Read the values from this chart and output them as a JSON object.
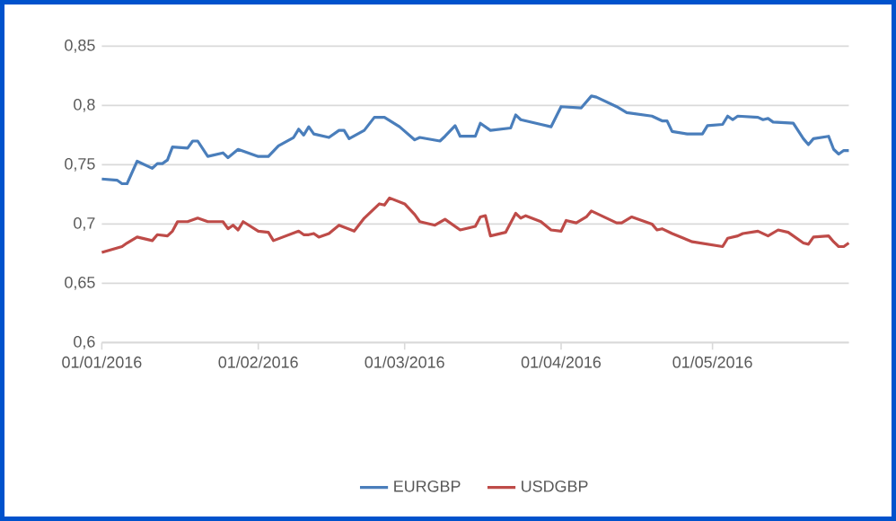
{
  "chart_data": {
    "type": "line",
    "xlim": [
      "2016-01-01",
      "2016-05-28"
    ],
    "ylim": [
      0.6,
      0.85
    ],
    "xticks": [
      {
        "value": "2016-01-01",
        "label": "01/01/2016"
      },
      {
        "value": "2016-02-01",
        "label": "01/02/2016"
      },
      {
        "value": "2016-03-01",
        "label": "01/03/2016"
      },
      {
        "value": "2016-04-01",
        "label": "01/04/2016"
      },
      {
        "value": "2016-05-01",
        "label": "01/05/2016"
      }
    ],
    "yticks": [
      {
        "value": 0.6,
        "label": "0,6"
      },
      {
        "value": 0.65,
        "label": "0,65"
      },
      {
        "value": 0.7,
        "label": "0,7"
      },
      {
        "value": 0.75,
        "label": "0,75"
      },
      {
        "value": 0.8,
        "label": "0,8"
      },
      {
        "value": 0.85,
        "label": "0,85"
      }
    ],
    "grid": "y",
    "legend": "bottom",
    "marker": "none",
    "line_style": "solid",
    "series": [
      {
        "name": "EURGBP",
        "color": "#4a7ebb",
        "x": [
          "2016-01-01",
          "2016-01-04",
          "2016-01-05",
          "2016-01-06",
          "2016-01-08",
          "2016-01-11",
          "2016-01-12",
          "2016-01-13",
          "2016-01-14",
          "2016-01-15",
          "2016-01-18",
          "2016-01-19",
          "2016-01-20",
          "2016-01-22",
          "2016-01-25",
          "2016-01-26",
          "2016-01-28",
          "2016-02-01",
          "2016-02-03",
          "2016-02-05",
          "2016-02-08",
          "2016-02-09",
          "2016-02-10",
          "2016-02-11",
          "2016-02-12",
          "2016-02-15",
          "2016-02-17",
          "2016-02-18",
          "2016-02-19",
          "2016-02-22",
          "2016-02-24",
          "2016-02-26",
          "2016-02-29",
          "2016-03-03",
          "2016-03-04",
          "2016-03-08",
          "2016-03-09",
          "2016-03-11",
          "2016-03-12",
          "2016-03-15",
          "2016-03-16",
          "2016-03-18",
          "2016-03-22",
          "2016-03-23",
          "2016-03-24",
          "2016-03-28",
          "2016-03-30",
          "2016-04-01",
          "2016-04-05",
          "2016-04-07",
          "2016-04-08",
          "2016-04-12",
          "2016-04-14",
          "2016-04-19",
          "2016-04-21",
          "2016-04-22",
          "2016-04-23",
          "2016-04-26",
          "2016-04-28",
          "2016-04-29",
          "2016-04-30",
          "2016-05-03",
          "2016-05-04",
          "2016-05-05",
          "2016-05-06",
          "2016-05-10",
          "2016-05-11",
          "2016-05-12",
          "2016-05-13",
          "2016-05-17",
          "2016-05-19",
          "2016-05-20",
          "2016-05-21",
          "2016-05-24",
          "2016-05-25",
          "2016-05-26",
          "2016-05-27",
          "2016-05-28"
        ],
        "values": [
          0.738,
          0.737,
          0.734,
          0.734,
          0.753,
          0.747,
          0.751,
          0.751,
          0.754,
          0.765,
          0.764,
          0.77,
          0.77,
          0.757,
          0.76,
          0.756,
          0.763,
          0.757,
          0.757,
          0.766,
          0.773,
          0.78,
          0.775,
          0.782,
          0.776,
          0.773,
          0.779,
          0.779,
          0.772,
          0.779,
          0.79,
          0.79,
          0.782,
          0.771,
          0.773,
          0.77,
          0.774,
          0.783,
          0.774,
          0.774,
          0.785,
          0.779,
          0.781,
          0.792,
          0.788,
          0.784,
          0.782,
          0.799,
          0.798,
          0.808,
          0.807,
          0.799,
          0.794,
          0.791,
          0.787,
          0.787,
          0.778,
          0.776,
          0.776,
          0.776,
          0.783,
          0.784,
          0.791,
          0.788,
          0.791,
          0.79,
          0.788,
          0.789,
          0.786,
          0.785,
          0.772,
          0.767,
          0.772,
          0.774,
          0.763,
          0.759,
          0.762,
          0.762
        ]
      },
      {
        "name": "USDGBP",
        "color": "#be4b48",
        "x": [
          "2016-01-01",
          "2016-01-05",
          "2016-01-06",
          "2016-01-08",
          "2016-01-11",
          "2016-01-12",
          "2016-01-14",
          "2016-01-15",
          "2016-01-16",
          "2016-01-18",
          "2016-01-20",
          "2016-01-22",
          "2016-01-25",
          "2016-01-26",
          "2016-01-27",
          "2016-01-28",
          "2016-01-29",
          "2016-02-01",
          "2016-02-03",
          "2016-02-04",
          "2016-02-09",
          "2016-02-10",
          "2016-02-11",
          "2016-02-12",
          "2016-02-13",
          "2016-02-15",
          "2016-02-17",
          "2016-02-20",
          "2016-02-22",
          "2016-02-25",
          "2016-02-26",
          "2016-02-27",
          "2016-03-01",
          "2016-03-03",
          "2016-03-04",
          "2016-03-07",
          "2016-03-09",
          "2016-03-12",
          "2016-03-15",
          "2016-03-16",
          "2016-03-17",
          "2016-03-18",
          "2016-03-21",
          "2016-03-23",
          "2016-03-24",
          "2016-03-25",
          "2016-03-28",
          "2016-03-30",
          "2016-04-01",
          "2016-04-02",
          "2016-04-04",
          "2016-04-06",
          "2016-04-07",
          "2016-04-12",
          "2016-04-13",
          "2016-04-15",
          "2016-04-19",
          "2016-04-20",
          "2016-04-21",
          "2016-04-23",
          "2016-04-27",
          "2016-05-03",
          "2016-05-04",
          "2016-05-06",
          "2016-05-07",
          "2016-05-10",
          "2016-05-12",
          "2016-05-14",
          "2016-05-16",
          "2016-05-19",
          "2016-05-20",
          "2016-05-21",
          "2016-05-24",
          "2016-05-25",
          "2016-05-26",
          "2016-05-27",
          "2016-05-28"
        ],
        "values": [
          0.676,
          0.681,
          0.684,
          0.689,
          0.686,
          0.691,
          0.69,
          0.694,
          0.702,
          0.702,
          0.705,
          0.702,
          0.702,
          0.696,
          0.699,
          0.695,
          0.702,
          0.694,
          0.693,
          0.686,
          0.694,
          0.691,
          0.691,
          0.692,
          0.689,
          0.692,
          0.699,
          0.694,
          0.705,
          0.717,
          0.716,
          0.722,
          0.717,
          0.708,
          0.702,
          0.699,
          0.704,
          0.695,
          0.698,
          0.706,
          0.707,
          0.69,
          0.693,
          0.709,
          0.705,
          0.707,
          0.702,
          0.695,
          0.694,
          0.703,
          0.701,
          0.706,
          0.711,
          0.701,
          0.701,
          0.706,
          0.7,
          0.695,
          0.696,
          0.692,
          0.685,
          0.681,
          0.688,
          0.69,
          0.692,
          0.694,
          0.69,
          0.695,
          0.693,
          0.684,
          0.683,
          0.689,
          0.69,
          0.685,
          0.681,
          0.681,
          0.684
        ]
      }
    ]
  }
}
